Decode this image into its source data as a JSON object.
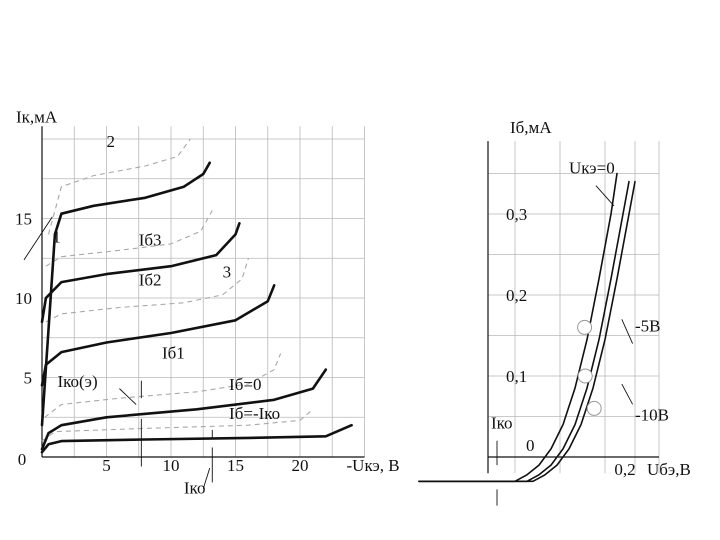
{
  "chart_data": [
    {
      "type": "line",
      "ylabel": "Iк,мА",
      "xlabel": "-Uкэ, В",
      "xlim": [
        0,
        25
      ],
      "ylim": [
        0,
        20
      ],
      "x_ticks": [
        "0",
        "5",
        "10",
        "15",
        "20"
      ],
      "y_ticks": [
        "5",
        "10",
        "15"
      ],
      "grid": true,
      "series": [
        {
          "name": "Iб=-Iко",
          "style": "solid",
          "points": [
            [
              0,
              0.3
            ],
            [
              0.5,
              0.8
            ],
            [
              1.5,
              1.0
            ],
            [
              8,
              1.1
            ],
            [
              16,
              1.2
            ],
            [
              22,
              1.3
            ],
            [
              24,
              2.0
            ]
          ]
        },
        {
          "name": "Iб=0",
          "style": "solid",
          "points": [
            [
              0,
              0.5
            ],
            [
              0.5,
              1.5
            ],
            [
              1.5,
              2.0
            ],
            [
              5,
              2.5
            ],
            [
              12,
              3.0
            ],
            [
              18,
              3.6
            ],
            [
              21,
              4.3
            ],
            [
              22,
              5.5
            ]
          ]
        },
        {
          "name": "Iб1",
          "style": "solid",
          "points": [
            [
              0,
              4.5
            ],
            [
              0.3,
              5.8
            ],
            [
              1.5,
              6.6
            ],
            [
              5,
              7.2
            ],
            [
              10,
              7.8
            ],
            [
              15,
              8.6
            ],
            [
              17.5,
              9.8
            ],
            [
              18,
              10.8
            ]
          ]
        },
        {
          "name": "Iб2",
          "style": "solid",
          "points": [
            [
              0,
              8.5
            ],
            [
              0.3,
              10.0
            ],
            [
              1.5,
              11.0
            ],
            [
              5,
              11.5
            ],
            [
              10,
              12.0
            ],
            [
              13.5,
              12.7
            ],
            [
              15,
              14.0
            ],
            [
              15.3,
              14.7
            ]
          ]
        },
        {
          "name": "Iб3",
          "style": "solid",
          "points": [
            [
              0,
              2.0
            ],
            [
              0.5,
              8.0
            ],
            [
              1.0,
              14.0
            ],
            [
              1.5,
              15.3
            ],
            [
              4,
              15.8
            ],
            [
              8,
              16.3
            ],
            [
              11,
              17.0
            ],
            [
              12.5,
              17.8
            ],
            [
              13,
              18.5
            ]
          ]
        },
        {
          "name": "",
          "style": "dashed",
          "points": [
            [
              0,
              1.0
            ],
            [
              1,
              1.6
            ],
            [
              8,
              1.8
            ],
            [
              16,
              2.0
            ],
            [
              20,
              2.3
            ],
            [
              21,
              3.0
            ]
          ]
        },
        {
          "name": "",
          "style": "dashed",
          "points": [
            [
              0.2,
              2.5
            ],
            [
              1.5,
              3.3
            ],
            [
              6,
              3.7
            ],
            [
              12,
              4.1
            ],
            [
              16,
              4.6
            ],
            [
              18,
              5.5
            ],
            [
              18.5,
              6.5
            ]
          ]
        },
        {
          "name": "",
          "style": "dashed",
          "points": [
            [
              0.3,
              8.5
            ],
            [
              1.5,
              9.0
            ],
            [
              6,
              9.4
            ],
            [
              11,
              9.7
            ],
            [
              14,
              10.2
            ],
            [
              15.5,
              11.2
            ],
            [
              16,
              12.5
            ]
          ]
        },
        {
          "name": "",
          "style": "dashed",
          "points": [
            [
              0.3,
              12.0
            ],
            [
              1.5,
              12.6
            ],
            [
              6,
              13.0
            ],
            [
              10,
              13.4
            ],
            [
              12.3,
              14.2
            ],
            [
              13.2,
              15.5
            ]
          ]
        },
        {
          "name": "",
          "style": "dashed",
          "points": [
            [
              0.5,
              14.0
            ],
            [
              1.5,
              17.0
            ],
            [
              4,
              17.7
            ],
            [
              8,
              18.3
            ],
            [
              10.5,
              18.9
            ],
            [
              11.5,
              20.0
            ]
          ]
        }
      ],
      "annotations": [
        {
          "text": "1",
          "x": 0.8,
          "y": 13.5
        },
        {
          "text": "2",
          "x": 5,
          "y": 19.5
        },
        {
          "text": "3",
          "x": 14,
          "y": 11.3
        },
        {
          "text": "Iб3",
          "x": 7.5,
          "y": 13.3
        },
        {
          "text": "Iб2",
          "x": 7.5,
          "y": 10.8
        },
        {
          "text": "Iб1",
          "x": 9.3,
          "y": 6.2
        },
        {
          "text": "Iб=0",
          "x": 14.5,
          "y": 4.2
        },
        {
          "text": "Iб=-Iко",
          "x": 14.5,
          "y": 2.4
        },
        {
          "text": "Iко(э)",
          "x": 1.2,
          "y": 4.4
        },
        {
          "text": "Iко",
          "x": 11,
          "y": -2.3
        }
      ]
    },
    {
      "type": "line",
      "ylabel": "Iб,мА",
      "xlabel": "Uбэ,В",
      "x_ticks": [
        "0,2"
      ],
      "y_ticks": [
        "0",
        "0,1",
        "0,2",
        "0,3"
      ],
      "grid": true,
      "series": [
        {
          "name": "Uкэ=0",
          "points": [
            [
              -0.16,
              -0.03
            ],
            [
              0,
              -0.03
            ],
            [
              0.02,
              -0.022
            ],
            [
              0.04,
              -0.01
            ],
            [
              0.06,
              0.01
            ],
            [
              0.08,
              0.04
            ],
            [
              0.1,
              0.085
            ],
            [
              0.12,
              0.145
            ],
            [
              0.14,
              0.22
            ],
            [
              0.16,
              0.3
            ],
            [
              0.17,
              0.35
            ]
          ]
        },
        {
          "name": "-5В",
          "points": [
            [
              -0.16,
              -0.03
            ],
            [
              0.02,
              -0.03
            ],
            [
              0.04,
              -0.022
            ],
            [
              0.06,
              -0.01
            ],
            [
              0.08,
              0.01
            ],
            [
              0.1,
              0.04
            ],
            [
              0.12,
              0.085
            ],
            [
              0.14,
              0.145
            ],
            [
              0.16,
              0.22
            ],
            [
              0.18,
              0.3
            ],
            [
              0.19,
              0.34
            ]
          ]
        },
        {
          "name": "-10В",
          "points": [
            [
              -0.16,
              -0.03
            ],
            [
              0.03,
              -0.03
            ],
            [
              0.05,
              -0.022
            ],
            [
              0.07,
              -0.01
            ],
            [
              0.09,
              0.01
            ],
            [
              0.11,
              0.04
            ],
            [
              0.13,
              0.085
            ],
            [
              0.15,
              0.145
            ],
            [
              0.17,
              0.22
            ],
            [
              0.19,
              0.3
            ],
            [
              0.2,
              0.34
            ]
          ]
        }
      ],
      "markers": [
        {
          "label": "-5В",
          "x": 0.116,
          "y": 0.16
        },
        {
          "label": "-10В",
          "x": 0.117,
          "y": 0.1
        },
        {
          "label": "",
          "x": 0.132,
          "y": 0.06
        }
      ],
      "annotations": [
        {
          "text": "Uкэ=0"
        },
        {
          "text": "-5В"
        },
        {
          "text": "-10В"
        },
        {
          "text": "Iко"
        }
      ]
    }
  ]
}
